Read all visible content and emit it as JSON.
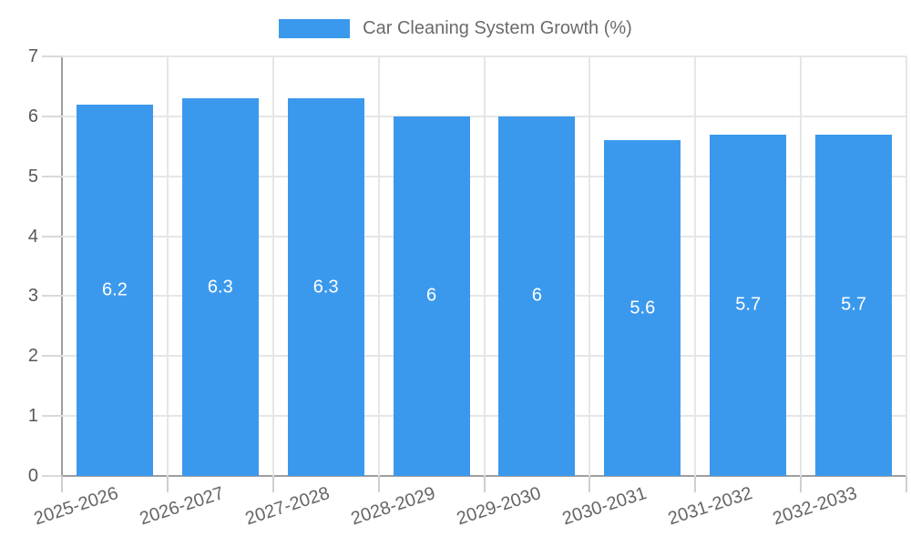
{
  "chart_data": {
    "type": "bar",
    "title": "Car Cleaning System Growth (%)",
    "categories": [
      "2025-2026",
      "2026-2027",
      "2027-2028",
      "2028-2029",
      "2029-2030",
      "2030-2031",
      "2031-2032",
      "2032-2033"
    ],
    "values": [
      6.2,
      6.3,
      6.3,
      6,
      6,
      5.6,
      5.7,
      5.7
    ],
    "bar_labels": [
      "6.2",
      "6.3",
      "6.3",
      "6",
      "6",
      "5.6",
      "5.7",
      "5.7"
    ],
    "xlabel": "",
    "ylabel": "",
    "ylim": [
      0,
      7
    ],
    "yticks": [
      0,
      1,
      2,
      3,
      4,
      5,
      6,
      7
    ],
    "grid": true,
    "legend_position": "top-center",
    "colors": {
      "bar": "#3b99ed",
      "grid": "#e6e6e6",
      "axis": "#9e9e9e",
      "y_tick": "#d9d9d9",
      "x_tick": "#cfcfcf",
      "y_tick_text": "#595959",
      "x_tick_text": "#666666",
      "bar_label_text": "#ffffff",
      "legend_text": "#6b6b6b",
      "background": "#ffffff"
    },
    "x_label_rotation_deg": -18
  }
}
